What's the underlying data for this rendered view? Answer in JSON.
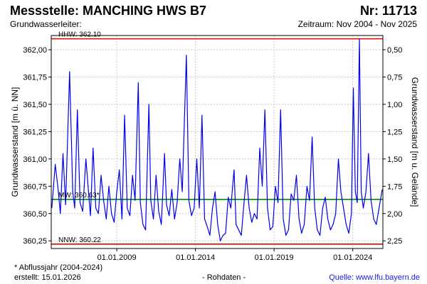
{
  "header": {
    "title": "Messstelle: MANCHING HWS B7",
    "number": "Nr: 11713",
    "aquifer_label": "Grundwasserleiter:",
    "period": "Zeitraum: Nov 2004 - Nov 2025"
  },
  "footer": {
    "note": "* Abflussjahr (2004-2024)",
    "created": "erstellt:  15.01.2026",
    "data_kind": "- Rohdaten -",
    "source": "Quelle: www.lfu.bayern.de"
  },
  "colors": {
    "series": "#0000ee",
    "hhw_line": "#ee0000",
    "nnw_line": "#ee0000",
    "mw_line": "#008800",
    "grid": "#c8c8c8"
  },
  "chart_data": {
    "type": "line",
    "title": "",
    "ylabel": "Grundwasserstand [m ü. NN]",
    "ylabel_right": "Grundwasserstand [m u. Gelände]",
    "ylim": [
      360.18,
      362.13
    ],
    "yticks": [
      360.25,
      360.5,
      360.75,
      361.0,
      361.25,
      361.5,
      361.75,
      362.0
    ],
    "ytick_labels": [
      "360,25",
      "360,50",
      "360,75",
      "361,00",
      "361,25",
      "361,50",
      "361,75",
      "362,00"
    ],
    "y2ticks": [
      0.5,
      0.75,
      1.0,
      1.25,
      1.5,
      1.75,
      2.0,
      2.25
    ],
    "y2tick_labels": [
      "0,50",
      "0,75",
      "1,00",
      "1,25",
      "1,50",
      "1,75",
      "2,00",
      "2,25"
    ],
    "y2_reference_level": 362.5,
    "xlim": [
      "2004-11-01",
      "2025-11-30"
    ],
    "xticks": [
      "2009-01-01",
      "2014-01-01",
      "2019-01-01",
      "2024-01-01"
    ],
    "xtick_labels": [
      "01.01.2009",
      "01.01.2014",
      "01.01.2019",
      "01.01.2024"
    ],
    "grid": true,
    "reference_lines": [
      {
        "label": "HHW: 362.10",
        "value": 362.1
      },
      {
        "label": "MW: 360.63*",
        "value": 360.63
      },
      {
        "label": "NNW: 360.22",
        "value": 360.22
      }
    ],
    "series": [
      {
        "x": [
          "2004-11-15",
          "2005-02-01",
          "2005-04-10",
          "2005-06-01",
          "2005-08-01",
          "2005-10-01",
          "2006-01-01",
          "2006-03-15",
          "2006-05-01",
          "2006-07-01",
          "2006-09-01",
          "2006-11-01",
          "2007-01-15",
          "2007-03-20",
          "2007-05-01",
          "2007-07-01",
          "2007-09-01",
          "2007-11-01",
          "2008-01-01",
          "2008-03-01",
          "2008-05-01",
          "2008-07-01",
          "2008-09-01",
          "2008-11-01",
          "2009-01-01",
          "2009-03-01",
          "2009-05-01",
          "2009-07-01",
          "2009-09-01",
          "2009-11-01",
          "2010-01-01",
          "2010-03-01",
          "2010-05-15",
          "2010-07-01",
          "2010-09-01",
          "2010-11-01",
          "2011-01-15",
          "2011-03-01",
          "2011-05-01",
          "2011-07-01",
          "2011-09-01",
          "2011-11-01",
          "2012-01-15",
          "2012-03-01",
          "2012-05-01",
          "2012-07-01",
          "2012-09-01",
          "2012-11-01",
          "2013-01-01",
          "2013-03-01",
          "2013-06-05",
          "2013-08-01",
          "2013-10-01",
          "2013-12-01",
          "2014-02-01",
          "2014-04-01",
          "2014-06-01",
          "2014-08-01",
          "2014-10-01",
          "2014-12-01",
          "2015-02-01",
          "2015-04-01",
          "2015-06-01",
          "2015-08-01",
          "2015-10-01",
          "2015-12-01",
          "2016-02-01",
          "2016-04-01",
          "2016-06-15",
          "2016-08-01",
          "2016-10-01",
          "2016-12-01",
          "2017-02-01",
          "2017-04-01",
          "2017-06-01",
          "2017-08-01",
          "2017-10-01",
          "2017-12-01",
          "2018-02-01",
          "2018-04-01",
          "2018-06-01",
          "2018-08-01",
          "2018-10-01",
          "2018-12-01",
          "2019-02-01",
          "2019-04-01",
          "2019-06-01",
          "2019-08-01",
          "2019-10-01",
          "2019-12-01",
          "2020-02-01",
          "2020-04-01",
          "2020-06-01",
          "2020-08-01",
          "2020-10-01",
          "2020-12-01",
          "2021-02-01",
          "2021-04-01",
          "2021-06-01",
          "2021-08-01",
          "2021-10-01",
          "2021-12-01",
          "2022-02-01",
          "2022-04-01",
          "2022-06-01",
          "2022-08-01",
          "2022-10-01",
          "2022-12-01",
          "2023-02-01",
          "2023-04-01",
          "2023-06-01",
          "2023-08-01",
          "2023-10-01",
          "2023-12-01",
          "2024-01-15",
          "2024-03-01",
          "2024-04-15",
          "2024-06-03",
          "2024-07-15",
          "2024-09-01",
          "2024-11-01",
          "2025-01-01",
          "2025-03-01",
          "2025-05-01",
          "2025-07-01",
          "2025-09-01",
          "2025-11-15"
        ],
        "y": [
          360.55,
          360.95,
          360.72,
          360.5,
          361.05,
          360.58,
          361.8,
          360.7,
          360.55,
          361.45,
          360.6,
          360.52,
          361.0,
          360.68,
          360.48,
          361.1,
          360.55,
          360.5,
          360.85,
          360.62,
          360.45,
          360.75,
          360.5,
          360.42,
          360.7,
          360.9,
          360.45,
          361.4,
          360.55,
          360.48,
          360.85,
          360.62,
          361.7,
          360.6,
          360.4,
          360.35,
          361.5,
          360.62,
          360.45,
          360.85,
          360.52,
          360.4,
          361.05,
          360.58,
          360.48,
          360.72,
          360.45,
          360.6,
          361.0,
          360.7,
          361.95,
          360.62,
          360.48,
          360.55,
          361.0,
          360.55,
          361.4,
          360.45,
          360.38,
          360.3,
          360.55,
          360.7,
          360.4,
          360.25,
          360.3,
          360.32,
          360.65,
          360.55,
          360.9,
          360.4,
          360.35,
          360.3,
          360.6,
          360.85,
          360.55,
          360.42,
          360.5,
          360.45,
          361.1,
          360.75,
          361.45,
          360.55,
          360.35,
          360.38,
          360.75,
          360.6,
          361.45,
          360.45,
          360.3,
          360.35,
          360.68,
          360.62,
          360.85,
          360.45,
          360.32,
          360.4,
          360.75,
          360.62,
          361.2,
          360.55,
          360.35,
          360.3,
          360.55,
          360.65,
          360.45,
          360.35,
          360.4,
          360.5,
          361.0,
          360.7,
          360.55,
          360.4,
          360.32,
          360.5,
          361.65,
          360.7,
          360.6,
          362.1,
          360.7,
          360.55,
          360.7,
          361.05,
          360.62,
          360.45,
          360.4,
          360.55,
          360.72
        ]
      }
    ]
  }
}
